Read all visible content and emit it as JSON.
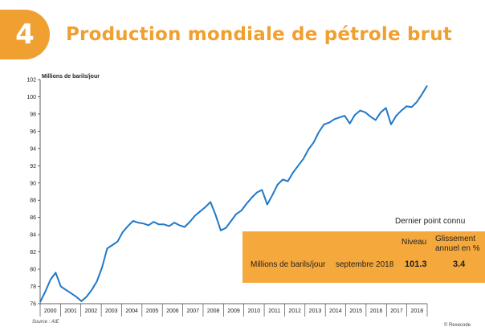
{
  "header": {
    "badge_number": "4",
    "title": "Production mondiale de pétrole brut"
  },
  "colors": {
    "accent": "#F0A030",
    "box": "#F5A83C",
    "line": "#1F78C8"
  },
  "info_box": {
    "heading": "Dernier point connu",
    "col_level": "Niveau",
    "col_change": "Glissement annuel en %",
    "row_label": "Millions de barils/jour",
    "row_date": "septembre 2018",
    "row_level": "101.3",
    "row_change": "3.4"
  },
  "footer": {
    "source": "Source : AIE",
    "copyright": "© Rexecode"
  },
  "chart_data": {
    "type": "line",
    "title": "",
    "ylabel": "Millions de barils/jour",
    "xlabel": "",
    "ylim": [
      76,
      102
    ],
    "xlim": [
      2000,
      2018.75
    ],
    "y_ticks": [
      76,
      78,
      80,
      82,
      84,
      86,
      88,
      90,
      92,
      94,
      96,
      98,
      100,
      102
    ],
    "x_tick_labels": [
      "2000",
      "2001",
      "2002",
      "2003",
      "2004",
      "2005",
      "2006",
      "2007",
      "2008",
      "2009",
      "2010",
      "2011",
      "2012",
      "2013",
      "2014",
      "2015",
      "2016",
      "2017",
      "2018"
    ],
    "grid": false,
    "series": [
      {
        "x": [
          2000.0,
          2000.25,
          2000.5,
          2000.75,
          2001.0,
          2001.25,
          2001.5,
          2001.75,
          2002.0,
          2002.25,
          2002.5,
          2002.75,
          2003.0,
          2003.25,
          2003.5,
          2003.75,
          2004.0,
          2004.25,
          2004.5,
          2004.75,
          2005.0,
          2005.25,
          2005.5,
          2005.75,
          2006.0,
          2006.25,
          2006.5,
          2006.75,
          2007.0,
          2007.25,
          2007.5,
          2007.75,
          2008.0,
          2008.25,
          2008.5,
          2008.75,
          2009.0,
          2009.25,
          2009.5,
          2009.75,
          2010.0,
          2010.25,
          2010.5,
          2010.75,
          2011.0,
          2011.25,
          2011.5,
          2011.75,
          2012.0,
          2012.25,
          2012.5,
          2012.75,
          2013.0,
          2013.25,
          2013.5,
          2013.75,
          2014.0,
          2014.25,
          2014.5,
          2014.75,
          2015.0,
          2015.25,
          2015.5,
          2015.75,
          2016.0,
          2016.25,
          2016.5,
          2016.75,
          2017.0,
          2017.25,
          2017.5,
          2017.75,
          2018.0,
          2018.25,
          2018.5,
          2018.75
        ],
        "values": [
          76.2,
          77.4,
          78.8,
          79.6,
          78.0,
          77.6,
          77.2,
          76.8,
          76.3,
          76.8,
          77.6,
          78.6,
          80.2,
          82.4,
          82.8,
          83.2,
          84.3,
          85.0,
          85.6,
          85.4,
          85.3,
          85.1,
          85.5,
          85.2,
          85.2,
          85.0,
          85.4,
          85.1,
          84.9,
          85.5,
          86.2,
          86.7,
          87.2,
          87.8,
          86.3,
          84.5,
          84.8,
          85.6,
          86.4,
          86.8,
          87.6,
          88.3,
          88.9,
          89.2,
          87.5,
          88.6,
          89.8,
          90.4,
          90.2,
          91.2,
          92.0,
          92.8,
          93.9,
          94.7,
          95.9,
          96.8,
          97.0,
          97.4,
          97.6,
          97.8,
          96.9,
          97.9,
          98.4,
          98.2,
          97.7,
          97.3,
          98.2,
          98.7,
          96.8,
          97.8,
          98.4,
          98.9,
          98.8,
          99.4,
          100.3,
          101.3
        ]
      }
    ]
  }
}
